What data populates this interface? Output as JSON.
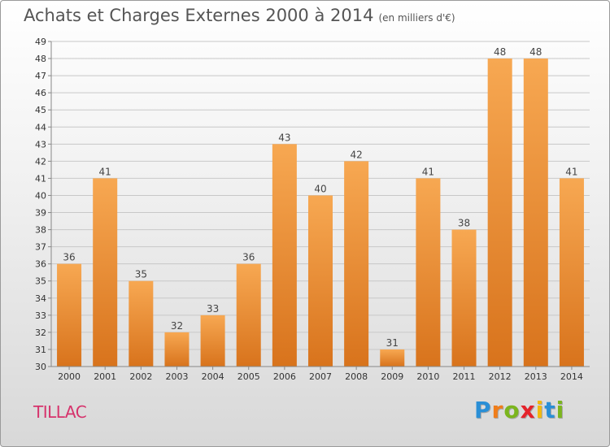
{
  "header": {
    "title": "Achats et Charges Externes 2000 à 2014",
    "unit": "(en milliers d'€)"
  },
  "footer": {
    "commune": "TILLAC",
    "logo": {
      "letters": [
        "P",
        "r",
        "o",
        "x",
        "i",
        "t",
        "i"
      ],
      "colors": [
        "#2a8fd6",
        "#f07d1a",
        "#7bb51e",
        "#e5232b",
        "#f2b90f",
        "#2a8fd6",
        "#7bb51e"
      ]
    }
  },
  "colors": {
    "bar_light": "#f7a852",
    "bar_dark": "#d8731c",
    "grid": "#c8c8c8",
    "axis": "#888888"
  },
  "chart_data": {
    "type": "bar",
    "title": "Achats et Charges Externes 2000 à 2014",
    "xlabel": "",
    "ylabel": "",
    "categories": [
      "2000",
      "2001",
      "2002",
      "2003",
      "2004",
      "2005",
      "2006",
      "2007",
      "2008",
      "2009",
      "2010",
      "2011",
      "2012",
      "2013",
      "2014"
    ],
    "values": [
      36,
      41,
      35,
      32,
      33,
      36,
      43,
      40,
      42,
      31,
      41,
      38,
      48,
      48,
      41
    ],
    "ylim": [
      30,
      49
    ],
    "yticks": [
      30,
      31,
      32,
      33,
      34,
      35,
      36,
      37,
      38,
      39,
      40,
      41,
      42,
      43,
      44,
      45,
      46,
      47,
      48,
      49
    ],
    "grid": true,
    "legend": "none"
  }
}
